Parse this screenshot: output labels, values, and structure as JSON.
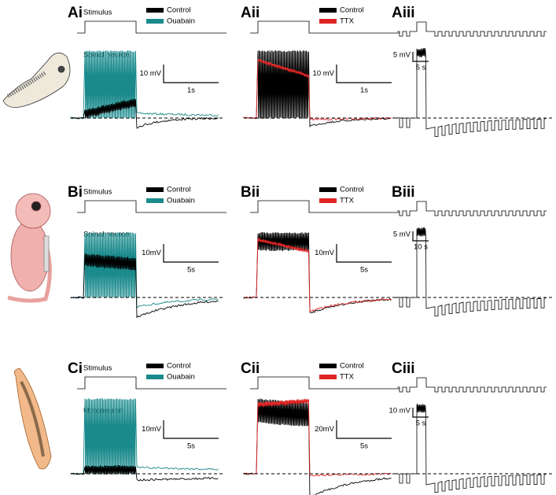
{
  "panels": [
    {
      "label": "Ai",
      "stimulus_label": "Stimulus",
      "cell_label": "Spinal neuron",
      "legend": [
        {
          "name": "Control",
          "color": "#000000"
        },
        {
          "name": "Ouabain",
          "color": "#1b8a8c"
        }
      ],
      "scale_bar": {
        "voltage": "10 mV",
        "time": "1s"
      }
    },
    {
      "label": "Aii",
      "legend": [
        {
          "name": "Control",
          "color": "#000000"
        },
        {
          "name": "TTX",
          "color": "#e02424"
        }
      ],
      "scale_bar": {
        "voltage": "10 mV",
        "time": "1s"
      }
    },
    {
      "label": "Aiii",
      "scale_bar": {
        "voltage": "5 mV",
        "time": "5 s"
      }
    },
    {
      "label": "Bi",
      "stimulus_label": "Stimulus",
      "cell_label": "Spinal neuron",
      "legend": [
        {
          "name": "Control",
          "color": "#000000"
        },
        {
          "name": "Ouabain",
          "color": "#1b8a8c"
        }
      ],
      "scale_bar": {
        "voltage": "10mV",
        "time": "5s"
      }
    },
    {
      "label": "Bii",
      "legend": [
        {
          "name": "Control",
          "color": "#000000"
        },
        {
          "name": "TTX",
          "color": "#e02424"
        }
      ],
      "scale_bar": {
        "voltage": "10mV",
        "time": "5s"
      }
    },
    {
      "label": "Biii",
      "scale_bar": {
        "voltage": "5 mV",
        "time": "10 s"
      }
    },
    {
      "label": "Ci",
      "stimulus_label": "Stimulus",
      "cell_label": "Motoneuron",
      "legend": [
        {
          "name": "Control",
          "color": "#000000"
        },
        {
          "name": "Ouabain",
          "color": "#1b8a8c"
        }
      ],
      "scale_bar": {
        "voltage": "10mV",
        "time": "5s"
      }
    },
    {
      "label": "Cii",
      "legend": [
        {
          "name": "Control",
          "color": "#000000"
        },
        {
          "name": "TTX",
          "color": "#e02424"
        }
      ],
      "scale_bar": {
        "voltage": "20mV",
        "time": "5s"
      }
    },
    {
      "label": "Ciii",
      "scale_bar": {
        "voltage": "10 mV",
        "time": "5 s"
      }
    }
  ]
}
